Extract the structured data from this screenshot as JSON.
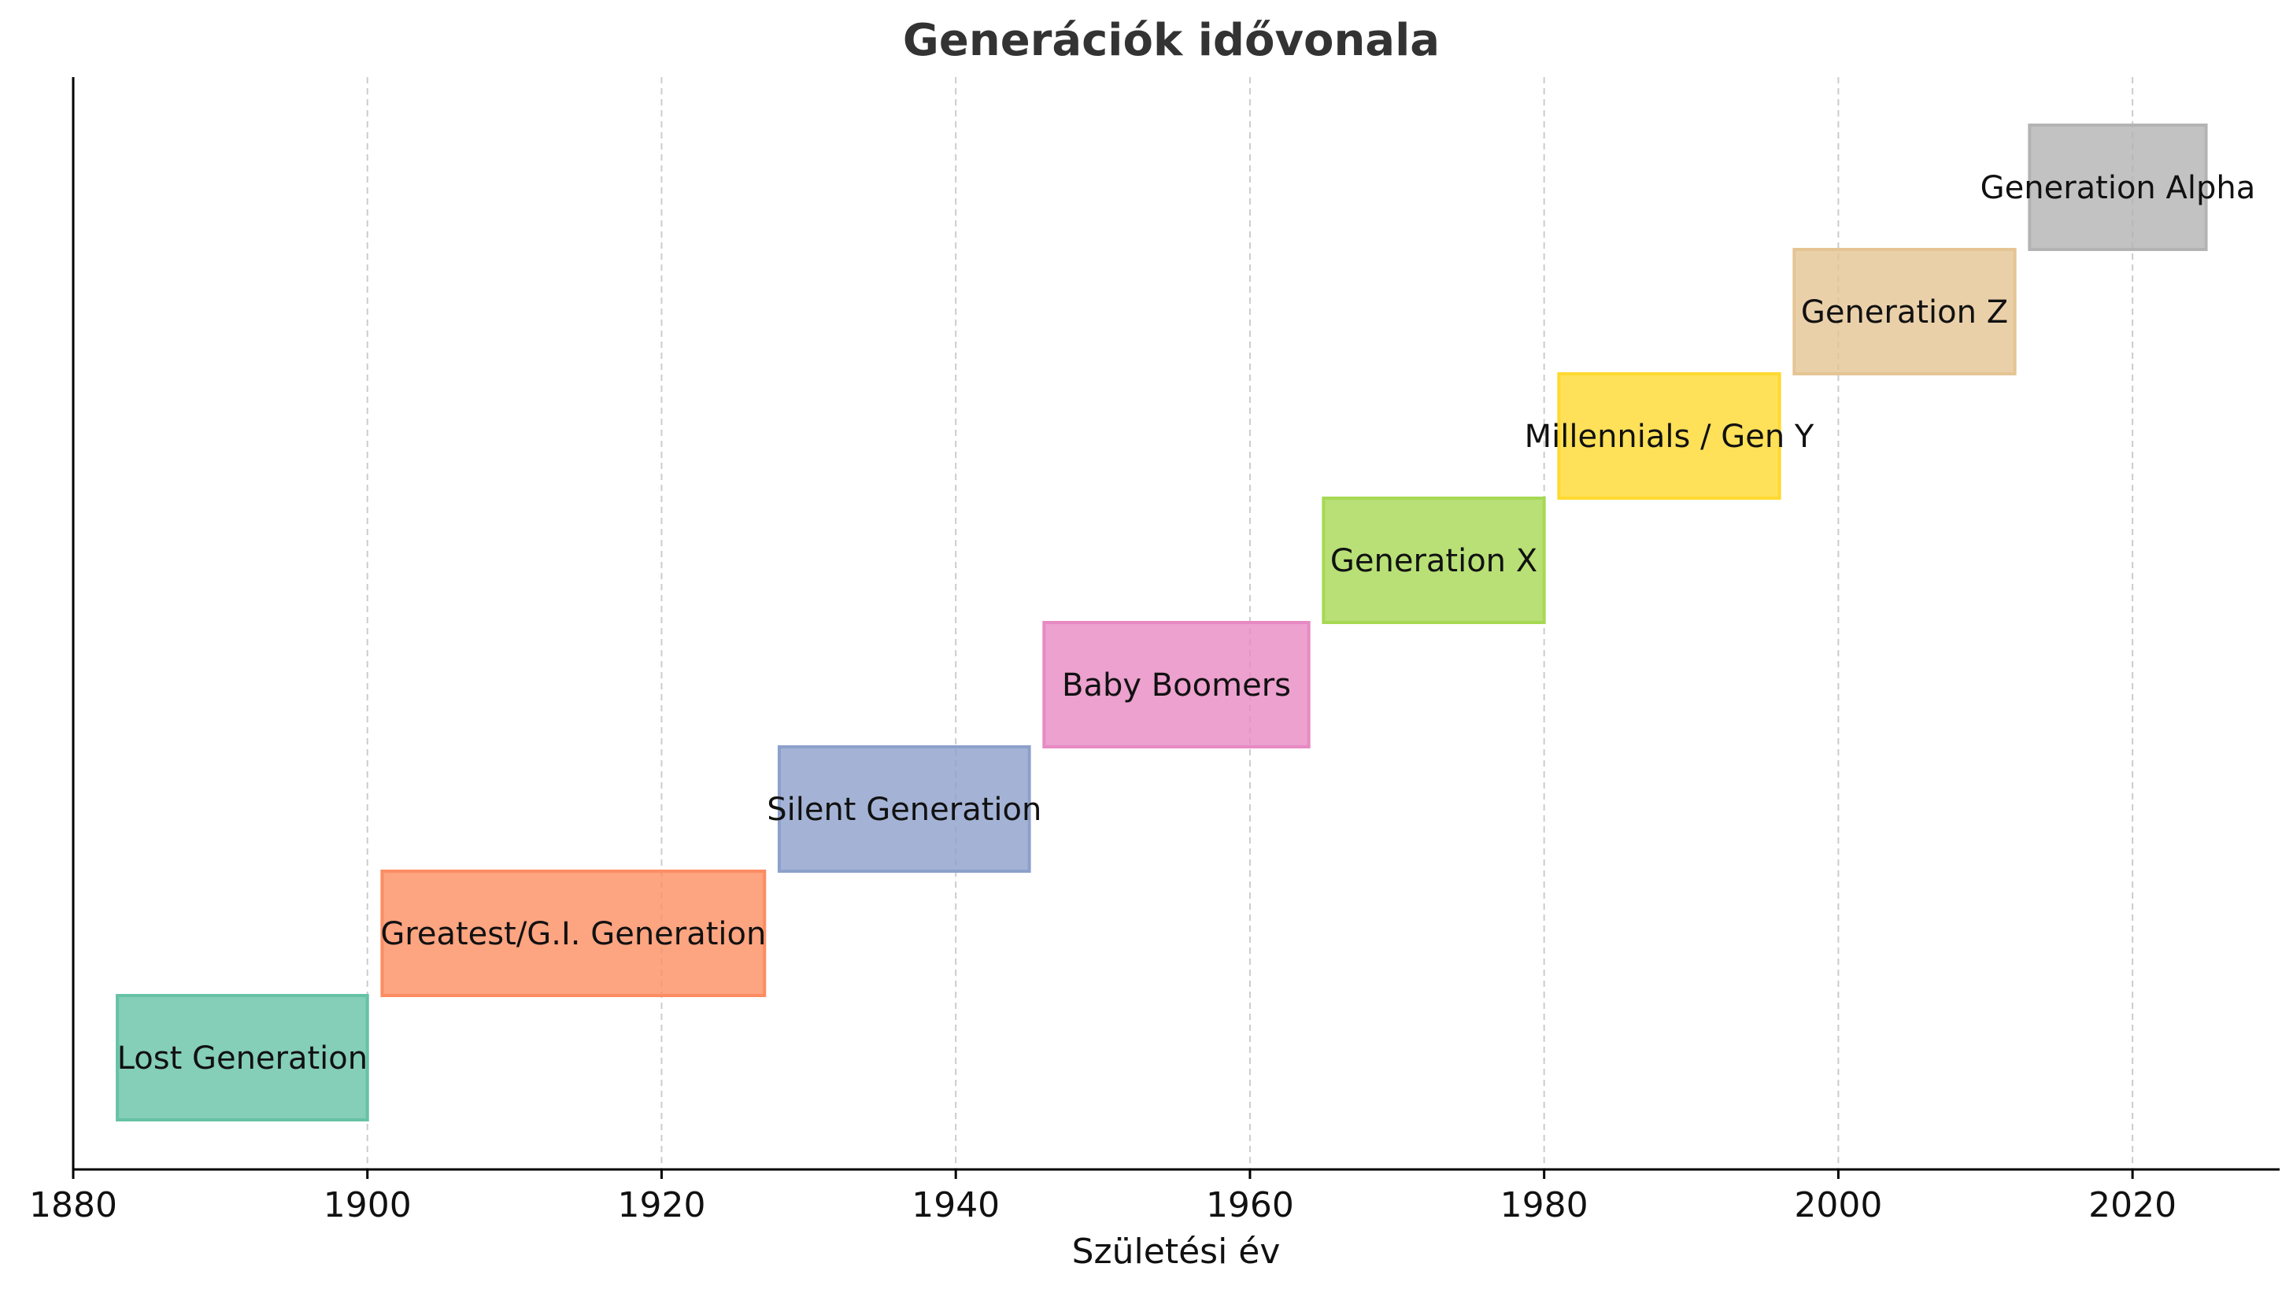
{
  "chart_data": {
    "type": "timeline",
    "title": "Generációk idővonala",
    "xlabel": "Születési év",
    "ylabel": "",
    "xlim": [
      1880,
      2030
    ],
    "xticks": [
      1880,
      1900,
      1920,
      1940,
      1960,
      1980,
      2000,
      2020
    ],
    "grid": "x-dashed",
    "legend": "none",
    "series": [
      {
        "label": "Lost Generation",
        "start": 1883,
        "end": 1900,
        "color": "#66c2a5"
      },
      {
        "label": "Greatest/G.I. Generation",
        "start": 1901,
        "end": 1927,
        "color": "#fc8d62"
      },
      {
        "label": "Silent Generation",
        "start": 1928,
        "end": 1945,
        "color": "#8da0cb"
      },
      {
        "label": "Baby Boomers",
        "start": 1946,
        "end": 1964,
        "color": "#e78ac3"
      },
      {
        "label": "Generation X",
        "start": 1965,
        "end": 1980,
        "color": "#a6d854"
      },
      {
        "label": "Millennials / Gen Y",
        "start": 1981,
        "end": 1996,
        "color": "#ffd92f"
      },
      {
        "label": "Generation Z",
        "start": 1997,
        "end": 2012,
        "color": "#e5c494"
      },
      {
        "label": "Generation Alpha",
        "start": 2013,
        "end": 2025,
        "color": "#b3b3b3"
      }
    ]
  }
}
